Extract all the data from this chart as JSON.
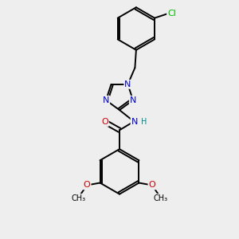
{
  "bg_color": "#eeeeee",
  "atom_colors": {
    "C": "#000000",
    "N": "#0000cc",
    "O": "#cc0000",
    "Cl": "#00bb00",
    "H": "#008888"
  },
  "bond_color": "#000000",
  "bond_lw": 1.4,
  "font_size": 8,
  "fig_size": [
    3.0,
    3.0
  ],
  "dpi": 100
}
